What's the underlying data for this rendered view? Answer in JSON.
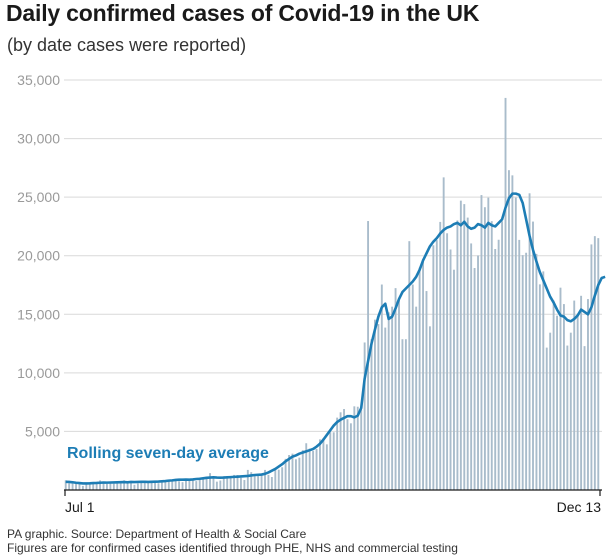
{
  "header": {
    "title": "Daily confirmed cases of Covid-19 in the UK",
    "subtitle": "(by date cases were reported)"
  },
  "footer": {
    "source_line1": "PA graphic. Source: Department of Health & Social Care",
    "source_line2": "Figures are for confirmed cases identified through PHE, NHS and commercial testing"
  },
  "colors": {
    "bars": "#a9bccb",
    "line": "#1d7db5",
    "grid": "#d9d9d9",
    "axis": "#1a1a1a",
    "annotation": "#1d7db5"
  },
  "chart_data": {
    "type": "bar",
    "title": "Daily confirmed cases of Covid-19 in the UK",
    "subtitle": "(by date cases were reported)",
    "x_start": "2020-07-01",
    "x_end": "2020-12-13",
    "x_tick_labels": [
      "Jul 1",
      "Dec 13"
    ],
    "ylim": [
      0,
      35000
    ],
    "y_ticks": [
      5000,
      10000,
      15000,
      20000,
      25000,
      30000,
      35000
    ],
    "y_tick_labels": [
      "5,000",
      "10,000",
      "15,000",
      "20,000",
      "25,000",
      "30,000",
      "35,000"
    ],
    "grid": true,
    "annotation": "Rolling seven-day average",
    "series": [
      {
        "kind": "bar",
        "values": [
          829,
          576,
          544,
          624,
          516,
          352,
          581,
          630,
          642,
          512,
          820,
          650,
          530,
          598,
          538,
          659,
          687,
          827,
          580,
          726,
          445,
          560,
          769,
          768,
          767,
          747,
          685,
          581,
          763,
          846,
          880,
          743,
          938,
          744,
          670,
          892,
          950,
          871,
          758,
          1062,
          1013,
          1148,
          1441,
          1040,
          713,
          812,
          1182,
          1089,
          1033,
          1288,
          1276,
          1041,
          853,
          1715,
          1522,
          1276,
          1184,
          1294,
          1715,
          1295,
          1108,
          1813,
          1735,
          1940,
          2659,
          2988,
          3105,
          2621,
          2762,
          3395,
          3991,
          3539,
          3330,
          3497,
          4322,
          4422,
          3899,
          4926,
          4926,
          6178,
          6634,
          6914,
          6042,
          5693,
          7143,
          7108,
          6874,
          12594,
          22961,
          12872,
          14542,
          14162,
          17540,
          13864,
          15166,
          15650,
          17234,
          16171,
          12872,
          12872,
          21242,
          17540,
          15650,
          18980,
          19724,
          16982,
          13972,
          20890,
          21331,
          22885,
          26688,
          21915,
          20530,
          18804,
          23012,
          24701,
          24405,
          23254,
          21049,
          18950,
          20018,
          25177,
          24141,
          24957,
          22950,
          20572,
          21363,
          22950,
          33470,
          27301,
          26860,
          24962,
          21350,
          20051,
          20252,
          25329,
          22915,
          20155,
          17555,
          18662,
          12155,
          13430,
          16170,
          14879,
          17272,
          15871,
          12330,
          13430,
          16170,
          14879,
          16578,
          12282,
          16298,
          20964,
          21672,
          21502
        ]
      },
      {
        "kind": "line",
        "name": "Rolling seven-day average",
        "values": [
          700,
          690,
          660,
          620,
          590,
          560,
          560,
          570,
          590,
          600,
          620,
          640,
          630,
          640,
          650,
          660,
          670,
          680,
          660,
          690,
          680,
          690,
          700,
          700,
          690,
          700,
          710,
          720,
          740,
          760,
          800,
          820,
          860,
          880,
          880,
          890,
          880,
          900,
          940,
          960,
          1000,
          1040,
          1060,
          1080,
          1060,
          1050,
          1060,
          1080,
          1100,
          1120,
          1140,
          1160,
          1180,
          1200,
          1240,
          1280,
          1300,
          1320,
          1380,
          1500,
          1650,
          1800,
          2000,
          2200,
          2450,
          2650,
          2850,
          2950,
          3100,
          3200,
          3300,
          3400,
          3500,
          3700,
          3950,
          4300,
          4700,
          5100,
          5500,
          5800,
          6000,
          6150,
          6300,
          6300,
          6200,
          6350,
          7000,
          9500,
          11000,
          12500,
          13700,
          14800,
          15600,
          15900,
          14600,
          14800,
          15500,
          16300,
          16900,
          17200,
          17500,
          17800,
          18200,
          18800,
          19600,
          20200,
          20800,
          21200,
          21500,
          21900,
          22200,
          22400,
          22500,
          22700,
          22800,
          22600,
          22900,
          22500,
          22300,
          22400,
          22700,
          22600,
          22400,
          22800,
          22600,
          22500,
          22800,
          23100,
          24100,
          24900,
          25300,
          25300,
          25200,
          24500,
          23100,
          21700,
          20500,
          19500,
          18600,
          17900,
          17200,
          16500,
          16000,
          15400,
          14900,
          14800,
          14500,
          14400,
          14600,
          14900,
          15400,
          15200,
          15000,
          15600,
          16600,
          17500,
          18100,
          18200
        ]
      }
    ]
  }
}
